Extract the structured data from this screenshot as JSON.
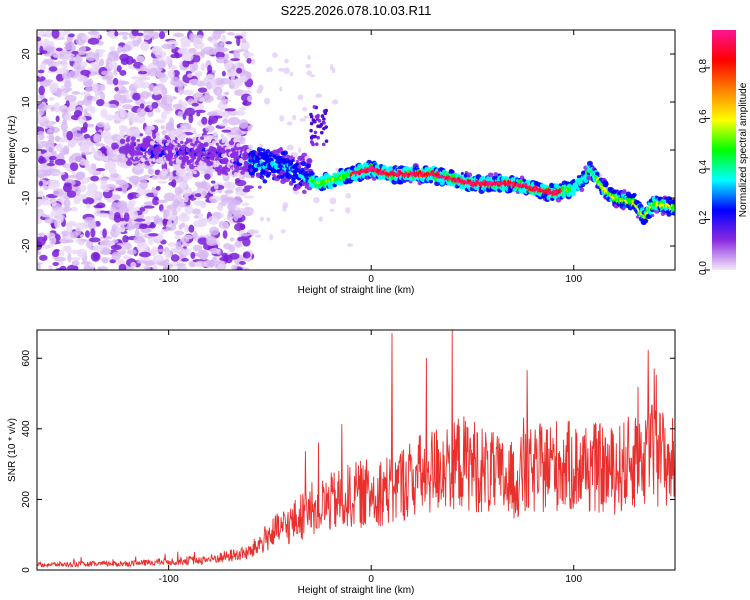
{
  "title": "S225.2026.078.10.03.R11",
  "chart_data": [
    {
      "type": "heatmap",
      "xlabel": "Height of straight line (km)",
      "ylabel": "Frequency (Hz)",
      "xlim": [
        -165,
        150
      ],
      "ylim": [
        -25,
        25
      ],
      "xticks": [
        -100,
        0,
        100
      ],
      "yticks": [
        -20,
        -10,
        0,
        10,
        20
      ],
      "colorbar": {
        "label": "Normalized spectral amplitude",
        "range": [
          0,
          0.95
        ],
        "ticks": [
          "0.0",
          "0.2",
          "0.4",
          "0.6",
          "0.8"
        ],
        "colors": [
          "#f4e8fa",
          "#8a2be2",
          "#0000ff",
          "#00ffff",
          "#00ff00",
          "#ffff00",
          "#ff8000",
          "#ff0000",
          "#ff1493"
        ]
      },
      "ridge": {
        "x": [
          -100,
          -80,
          -65,
          -55,
          -45,
          -35,
          -25,
          -10,
          0,
          10,
          20,
          30,
          40,
          50,
          60,
          70,
          80,
          90,
          100,
          105,
          108,
          115,
          120,
          130,
          135,
          140,
          150
        ],
        "y": [
          0,
          -1,
          -2,
          -3,
          -3,
          -5,
          -7,
          -5,
          -4,
          -5,
          -5,
          -5,
          -6,
          -7,
          -7,
          -7,
          -8,
          -9,
          -8,
          -6,
          -4,
          -8,
          -10,
          -11,
          -14,
          -11,
          -12
        ]
      }
    },
    {
      "type": "line",
      "xlabel": "Height of straight line (km)",
      "ylabel": "SNR (10 * v/v)",
      "xlim": [
        -165,
        150
      ],
      "ylim": [
        0,
        680
      ],
      "xticks": [
        -100,
        0,
        100
      ],
      "yticks": [
        0,
        200,
        400,
        600
      ],
      "color": "#e8302c",
      "envelope": {
        "x": [
          -165,
          -120,
          -80,
          -60,
          -50,
          -40,
          -30,
          -20,
          -10,
          0,
          10,
          20,
          30,
          40,
          50,
          60,
          70,
          80,
          90,
          100,
          110,
          120,
          130,
          140,
          150
        ],
        "y": [
          15,
          18,
          30,
          50,
          100,
          130,
          170,
          190,
          210,
          220,
          230,
          260,
          280,
          310,
          300,
          270,
          250,
          280,
          300,
          290,
          290,
          280,
          310,
          330,
          300
        ]
      }
    }
  ]
}
